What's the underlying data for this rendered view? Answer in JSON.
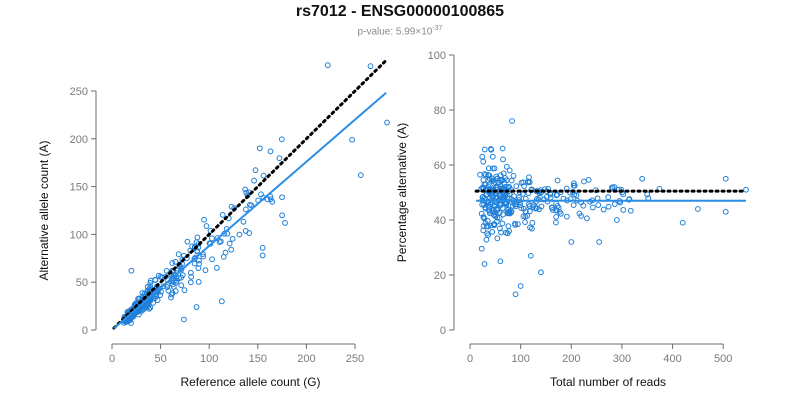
{
  "title": "rs7012 - ENSG00000100865",
  "subtitle": {
    "prefix": "p-value: 5.99×10",
    "exponent": "-37"
  },
  "colors": {
    "points": "#1f7fd8",
    "fit_line": "#2b8ee6",
    "reference_line": "#000000",
    "axis": "#6e6e6e"
  },
  "chart_data": [
    {
      "type": "scatter",
      "xlabel": "Reference allele count (G)",
      "ylabel": "Alternative allele count (A)",
      "xlim": [
        0,
        285
      ],
      "ylim": [
        0,
        260
      ],
      "xticks": [
        0,
        50,
        100,
        150,
        200,
        250
      ],
      "yticks": [
        0,
        50,
        100,
        150,
        200,
        250
      ],
      "grid": false,
      "reference_line": {
        "style": "dotted",
        "slope": 1.0,
        "intercept": 0,
        "x_range": [
          2,
          282
        ]
      },
      "fit_line": {
        "style": "solid",
        "slope": 0.88,
        "intercept": 0,
        "x_range": [
          2,
          282
        ]
      },
      "point_count": 330,
      "highlighted_points": [
        [
          222,
          277
        ],
        [
          266,
          276
        ],
        [
          283,
          217
        ],
        [
          247,
          199
        ],
        [
          256,
          162
        ],
        [
          152,
          190
        ],
        [
          155,
          78
        ],
        [
          155,
          86
        ],
        [
          178,
          112
        ],
        [
          175,
          120
        ],
        [
          74,
          11
        ],
        [
          87,
          24
        ],
        [
          113,
          30
        ],
        [
          62,
          62
        ],
        [
          137,
          147
        ],
        [
          141,
          144
        ],
        [
          20,
          62
        ]
      ]
    },
    {
      "type": "scatter",
      "xlabel": "Total number of reads",
      "ylabel": "Percentage alternative (A)",
      "xlim": [
        0,
        545
      ],
      "ylim": [
        0,
        100
      ],
      "xticks": [
        0,
        100,
        200,
        300,
        400,
        500
      ],
      "yticks": [
        0,
        20,
        40,
        60,
        80,
        100
      ],
      "grid": false,
      "reference_line": {
        "style": "dotted",
        "y": 50.5,
        "x_range": [
          12,
          545
        ]
      },
      "fit_line": {
        "style": "solid",
        "y": 47,
        "x_range": [
          12,
          545
        ]
      },
      "point_count": 330,
      "highlighted_points": [
        [
          83,
          76
        ],
        [
          90,
          13
        ],
        [
          100,
          16
        ],
        [
          140,
          21
        ],
        [
          120,
          27
        ],
        [
          60,
          25
        ],
        [
          505,
          55
        ],
        [
          505,
          43
        ],
        [
          545,
          51
        ],
        [
          420,
          39
        ],
        [
          450,
          44
        ],
        [
          340,
          55
        ],
        [
          290,
          40
        ],
        [
          225,
          54
        ],
        [
          285,
          52
        ],
        [
          255,
          32
        ],
        [
          200,
          32
        ],
        [
          45,
          63
        ]
      ]
    }
  ]
}
